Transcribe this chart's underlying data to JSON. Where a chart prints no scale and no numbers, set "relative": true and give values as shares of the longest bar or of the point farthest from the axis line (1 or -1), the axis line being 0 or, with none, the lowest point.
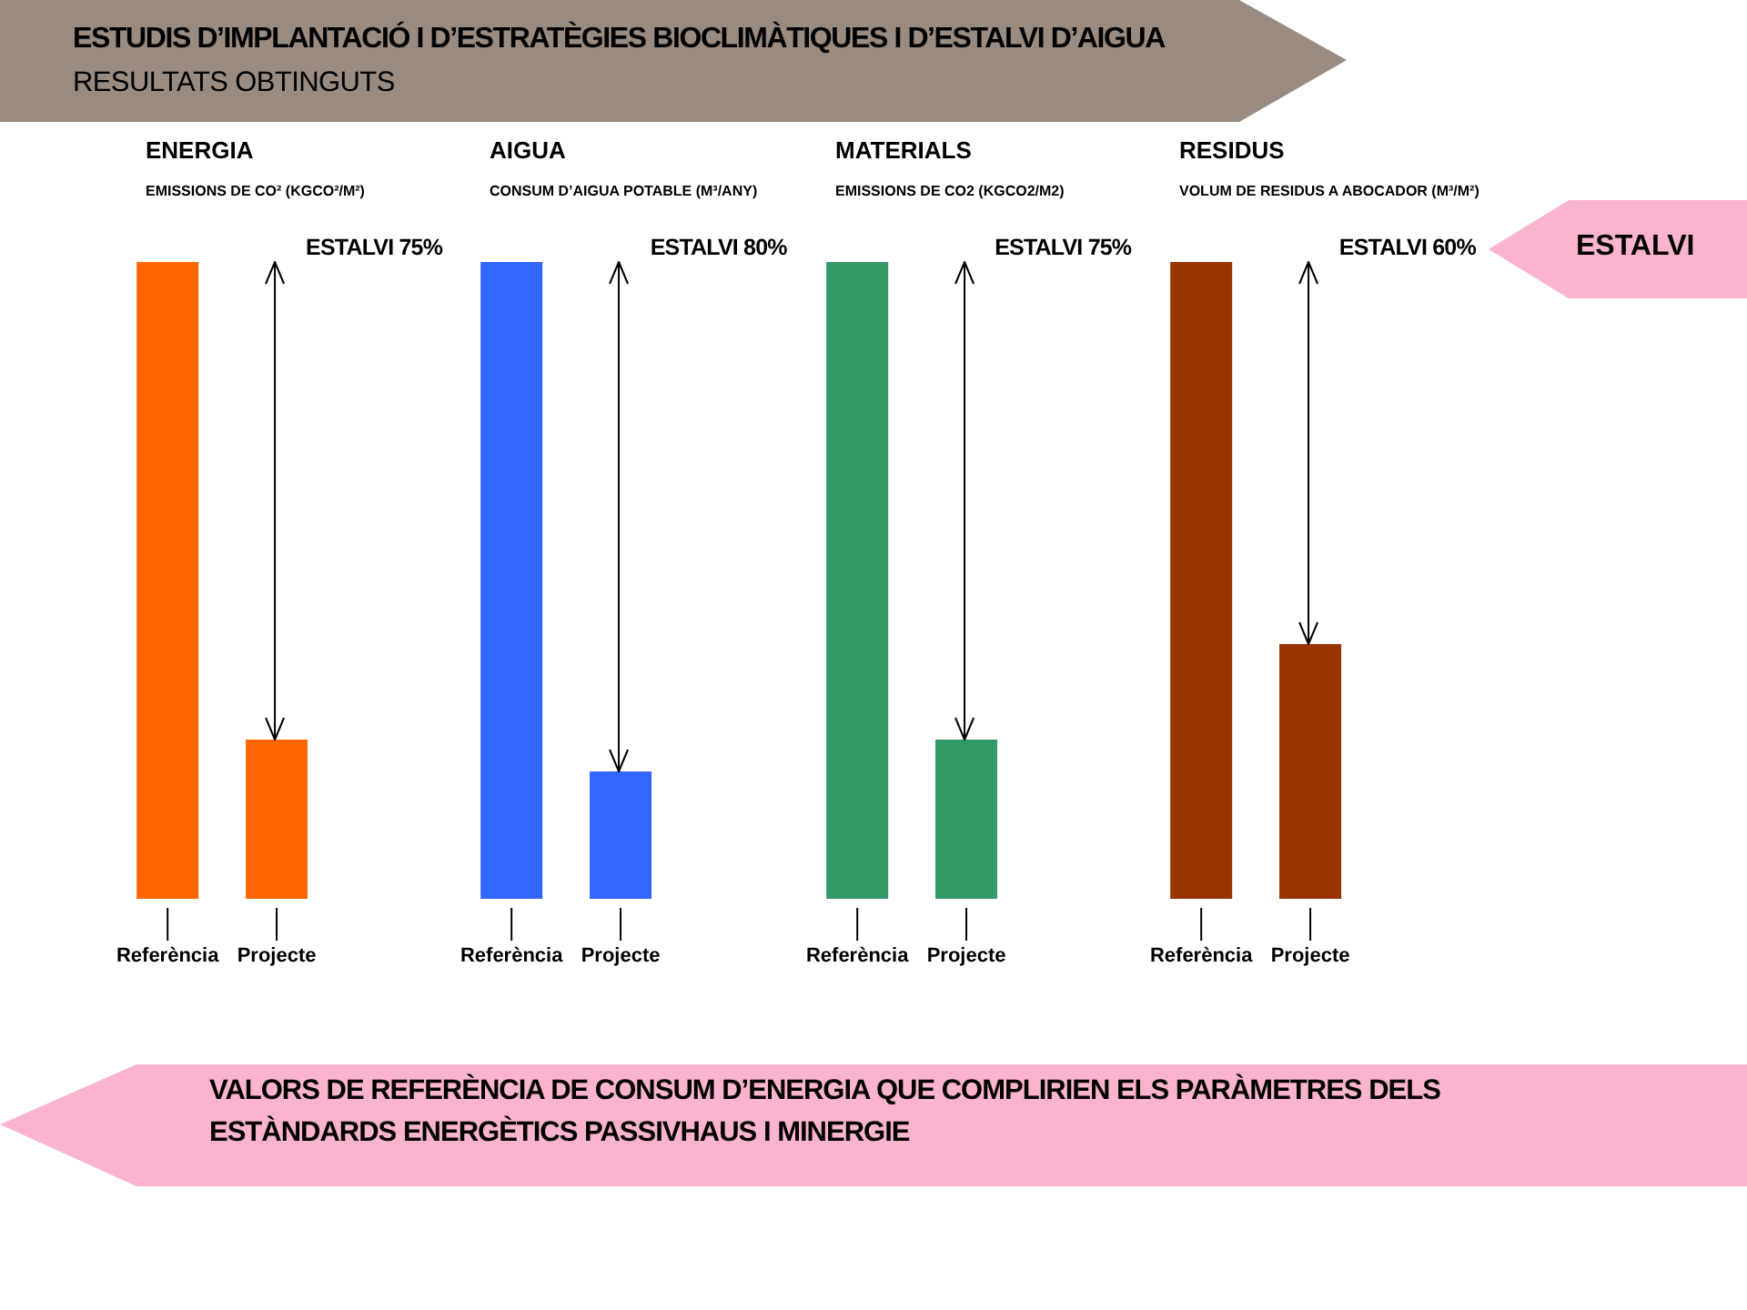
{
  "chart_data": [
    {
      "type": "other",
      "title": "ESTUDIS D’IMPLANTACIÓ I D’ESTRATÈGIES BIOCLIMÀTIQUES I D’ESTALVI D’AIGUA",
      "subtitle": "RESULTATS OBTINGUTS",
      "annotations": [
        "ESTALVI",
        "VALORS DE REFERÈNCIA DE CONSUM D’ENERGIA QUE COMPLIRIEN ELS PARÀMETRES DELS ESTÀNDARDS ENERGÈTICS PASSIVHAUS I MINERGIE"
      ]
    },
    {
      "type": "bar",
      "title": "ENERGIA",
      "subtitle": "EMISSIONS DE CO² (KGCO²/M²)",
      "categories": [
        "Referència",
        "Projecte"
      ],
      "values": [
        1,
        0.25
      ],
      "color": "#ff6600",
      "relative": true,
      "annotations": [
        "ESTALVI 75%"
      ]
    },
    {
      "type": "bar",
      "title": "AIGUA",
      "subtitle": "CONSUM D’AIGUA POTABLE (M³/ANY)",
      "categories": [
        "Referència",
        "Projecte"
      ],
      "values": [
        1,
        0.2
      ],
      "color": "#3366ff",
      "relative": true,
      "annotations": [
        "ESTALVI 80%"
      ]
    },
    {
      "type": "bar",
      "title": "MATERIALS",
      "subtitle": "EMISSIONS DE CO2 (KGCO2/M2)",
      "categories": [
        "Referència",
        "Projecte"
      ],
      "values": [
        1,
        0.25
      ],
      "color": "#339966",
      "relative": true,
      "annotations": [
        "ESTALVI 75%"
      ]
    },
    {
      "type": "bar",
      "title": "RESIDUS",
      "subtitle": "VOLUM DE RESIDUS A ABOCADOR (M³/M²)",
      "categories": [
        "Referència",
        "Projecte"
      ],
      "values": [
        1,
        0.4
      ],
      "color": "#993300",
      "relative": true,
      "annotations": [
        "ESTALVI 60%"
      ]
    }
  ]
}
